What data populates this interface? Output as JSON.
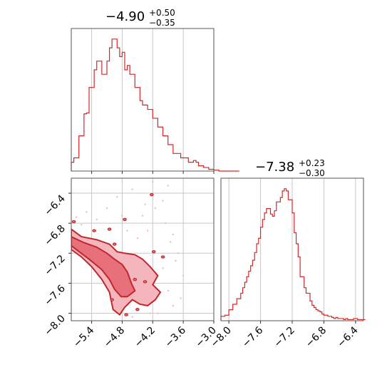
{
  "colors": {
    "accent": "#d62728",
    "fill_inner": "#e8707a",
    "fill_outer": "#f4b6bc"
  },
  "chart_data": [
    {
      "type": "histogram",
      "panel": "top-left",
      "title_value": "−4.90",
      "title_plus": "+0.50",
      "title_minus": "−0.35",
      "xlim": [
        -5.8,
        -3.0
      ],
      "grid": true,
      "bins": {
        "start": -5.8,
        "width": 0.05,
        "counts": [
          10,
          15,
          15,
          40,
          40,
          65,
          66,
          95,
          95,
          115,
          125,
          125,
          110,
          110,
          125,
          140,
          150,
          150,
          140,
          130,
          135,
          115,
          120,
          110,
          110,
          95,
          95,
          80,
          75,
          75,
          70,
          70,
          60,
          60,
          50,
          50,
          40,
          40,
          30,
          30,
          20,
          20,
          20,
          15,
          15,
          15,
          10,
          10,
          12,
          10,
          6,
          6,
          4,
          4,
          2,
          2,
          1,
          1,
          0,
          0,
          0,
          0,
          0,
          0,
          0,
          0
        ]
      }
    },
    {
      "type": "histogram",
      "panel": "bottom-right",
      "title_value": "−7.38",
      "title_plus": "+0.23",
      "title_minus": "−0.30",
      "xlim": [
        -8.1,
        -6.3
      ],
      "grid": true,
      "xticks": [
        "−8.0",
        "−7.6",
        "−7.2",
        "−6.8",
        "−6.4"
      ],
      "xtick_values": [
        -8.0,
        -7.6,
        -7.2,
        -6.8,
        -6.4
      ],
      "bins": {
        "start": -8.1,
        "width": 0.025,
        "counts": [
          4,
          4,
          5,
          5,
          10,
          10,
          15,
          15,
          20,
          20,
          25,
          30,
          35,
          40,
          45,
          50,
          55,
          62,
          70,
          75,
          85,
          92,
          98,
          102,
          102,
          97,
          95,
          100,
          108,
          108,
          112,
          118,
          120,
          118,
          110,
          110,
          98,
          80,
          70,
          58,
          40,
          40,
          30,
          25,
          25,
          18,
          14,
          12,
          10,
          9,
          8,
          6,
          5,
          5,
          4,
          4,
          3,
          2,
          3,
          2,
          2,
          2,
          1,
          2,
          1,
          1,
          1,
          2,
          2,
          1,
          1,
          1,
          1
        ]
      }
    },
    {
      "type": "contour",
      "panel": "bottom-left",
      "xlim": [
        -5.8,
        -3.0
      ],
      "ylim": [
        -8.1,
        -6.2
      ],
      "grid": true,
      "xticks": [
        "−5.4",
        "−4.8",
        "−4.2",
        "−3.6",
        "−3.0"
      ],
      "xtick_values": [
        -5.4,
        -4.8,
        -4.2,
        -3.6,
        -3.0
      ],
      "yticks": [
        "−6.4",
        "−6.8",
        "−7.2",
        "−7.6",
        "−8.0"
      ],
      "ytick_values": [
        -6.4,
        -6.8,
        -7.2,
        -7.6,
        -8.0
      ],
      "outer_contour": [
        [
          -5.8,
          -6.88
        ],
        [
          -5.6,
          -6.98
        ],
        [
          -5.3,
          -7.02
        ],
        [
          -5.05,
          -7.08
        ],
        [
          -4.9,
          -7.18
        ],
        [
          -4.75,
          -7.2
        ],
        [
          -4.55,
          -7.22
        ],
        [
          -4.4,
          -7.28
        ],
        [
          -4.25,
          -7.38
        ],
        [
          -4.1,
          -7.5
        ],
        [
          -4.2,
          -7.62
        ],
        [
          -4.05,
          -7.72
        ],
        [
          -4.15,
          -7.82
        ],
        [
          -4.3,
          -7.9
        ],
        [
          -4.45,
          -7.88
        ],
        [
          -4.6,
          -7.82
        ],
        [
          -4.75,
          -7.92
        ],
        [
          -4.85,
          -8.02
        ],
        [
          -4.98,
          -7.95
        ],
        [
          -5.05,
          -7.72
        ],
        [
          -5.2,
          -7.55
        ],
        [
          -5.4,
          -7.38
        ],
        [
          -5.6,
          -7.25
        ],
        [
          -5.8,
          -7.15
        ]
      ],
      "inner_contour": [
        [
          -5.8,
          -6.98
        ],
        [
          -5.55,
          -7.06
        ],
        [
          -5.3,
          -7.12
        ],
        [
          -5.1,
          -7.2
        ],
        [
          -4.95,
          -7.28
        ],
        [
          -4.8,
          -7.35
        ],
        [
          -4.7,
          -7.45
        ],
        [
          -4.62,
          -7.6
        ],
        [
          -4.55,
          -7.7
        ],
        [
          -4.7,
          -7.78
        ],
        [
          -4.82,
          -7.78
        ],
        [
          -4.95,
          -7.68
        ],
        [
          -5.05,
          -7.55
        ],
        [
          -5.2,
          -7.42
        ],
        [
          -5.45,
          -7.28
        ],
        [
          -5.8,
          -7.1
        ]
      ],
      "scatter": [
        [
          -5.1,
          -6.6
        ],
        [
          -4.9,
          -6.45
        ],
        [
          -4.6,
          -6.35
        ],
        [
          -4.4,
          -6.7
        ],
        [
          -4.3,
          -6.9
        ],
        [
          -4.0,
          -6.5
        ],
        [
          -3.9,
          -6.3
        ],
        [
          -3.95,
          -6.8
        ],
        [
          -3.7,
          -7.2
        ],
        [
          -3.6,
          -7.5
        ],
        [
          -3.75,
          -7.3
        ],
        [
          -3.8,
          -7.9
        ],
        [
          -4.1,
          -8.0
        ],
        [
          -3.9,
          -7.7
        ],
        [
          -4.5,
          -7.0
        ],
        [
          -4.7,
          -6.9
        ],
        [
          -5.3,
          -6.75
        ],
        [
          -5.5,
          -6.65
        ],
        [
          -5.7,
          -6.72
        ],
        [
          -4.2,
          -6.25
        ],
        [
          -4.35,
          -6.55
        ],
        [
          -3.85,
          -7.05
        ],
        [
          -4.0,
          -7.4
        ],
        [
          -3.65,
          -7.8
        ],
        [
          -4.6,
          -8.05
        ],
        [
          -4.25,
          -8.0
        ],
        [
          -5.6,
          -6.82
        ],
        [
          -4.8,
          -6.7
        ],
        [
          -4.15,
          -6.6
        ],
        [
          -3.8,
          -6.95
        ]
      ],
      "specks": [
        [
          -5.75,
          -6.78
        ],
        [
          -5.35,
          -6.9
        ],
        [
          -5.05,
          -6.88
        ],
        [
          -4.95,
          -7.08
        ],
        [
          -4.22,
          -6.42
        ],
        [
          -4.75,
          -6.75
        ],
        [
          -4.18,
          -7.18
        ],
        [
          -4.0,
          -7.25
        ],
        [
          -4.5,
          -7.95
        ],
        [
          -4.72,
          -8.02
        ],
        [
          -4.35,
          -7.58
        ],
        [
          -4.55,
          -7.55
        ],
        [
          -5.0,
          -7.82
        ]
      ]
    }
  ]
}
